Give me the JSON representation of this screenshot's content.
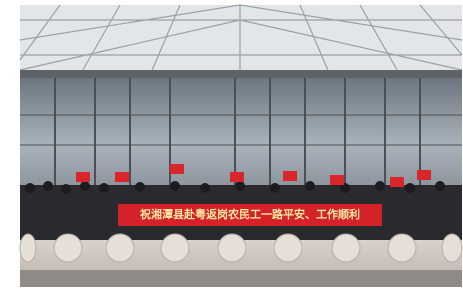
{
  "banner": {
    "text": "祝湘潭县赴粤返岗农民工一路平安、工作顺利"
  }
}
